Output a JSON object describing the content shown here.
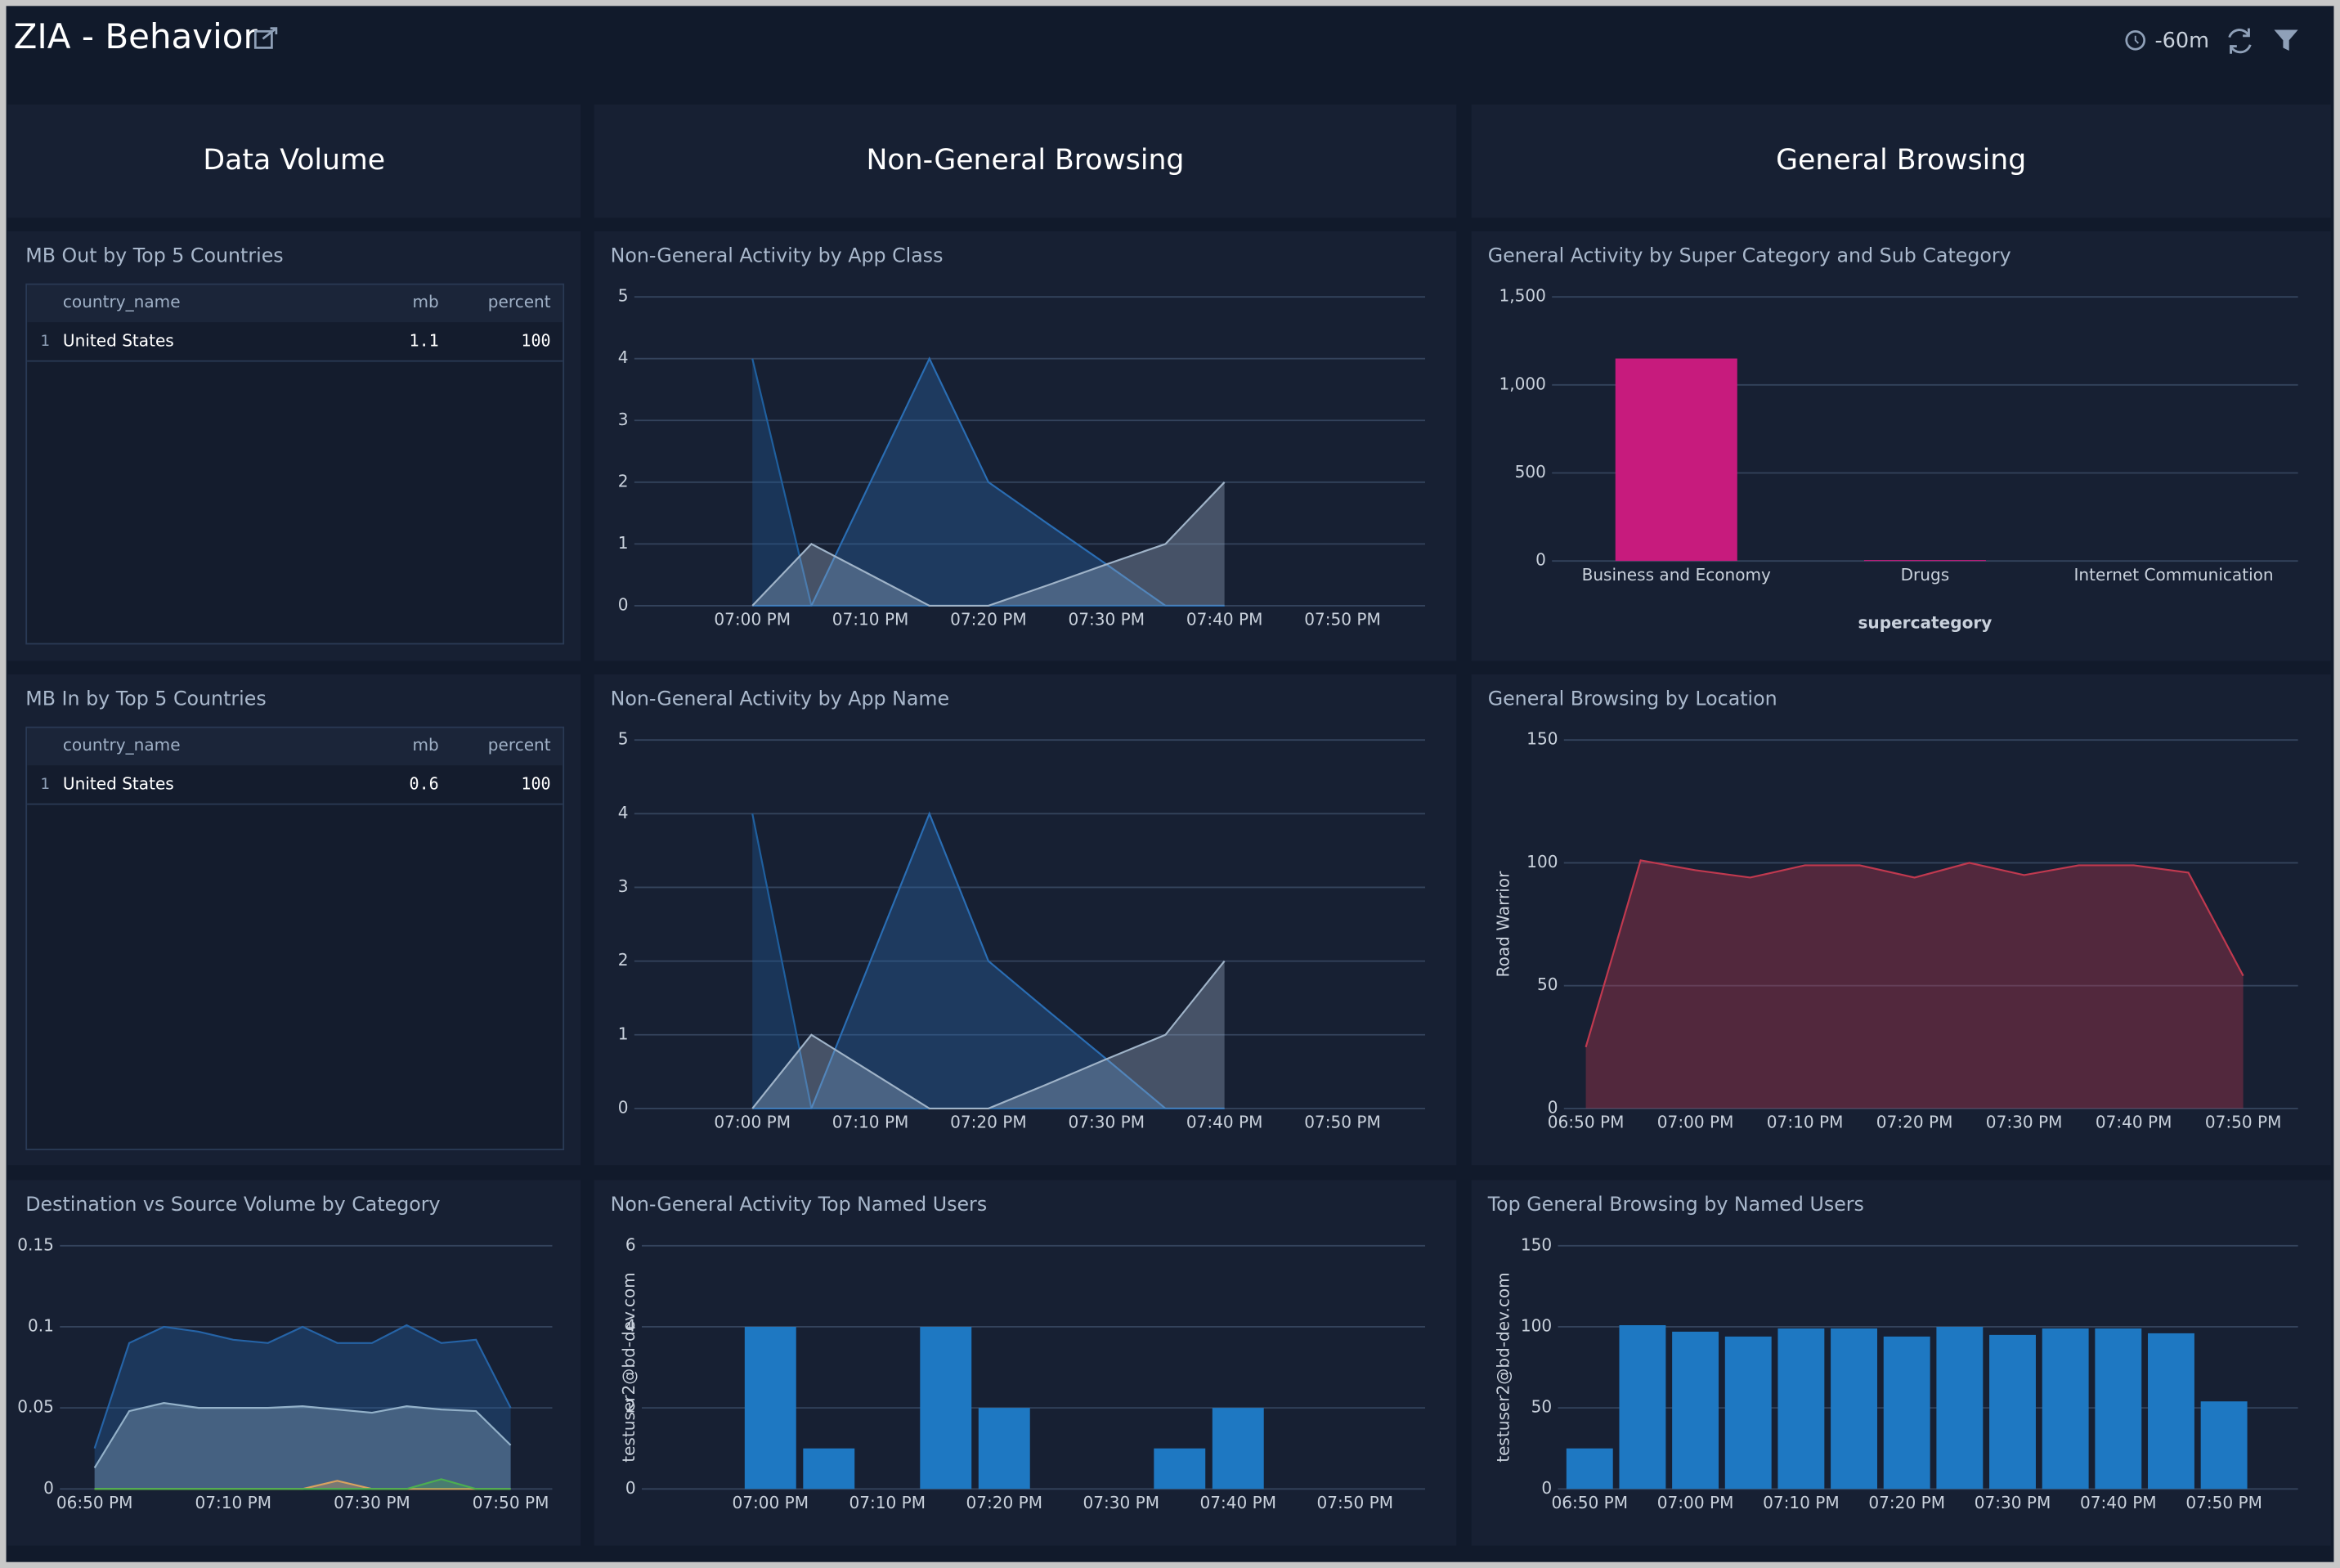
{
  "header": {
    "title": "ZIA - Behavior",
    "time_range": "-60m"
  },
  "sections": [
    "Data Volume",
    "Non-General Browsing",
    "General Browsing"
  ],
  "tables": [
    {
      "title": "MB Out by Top 5 Countries",
      "columns": [
        "country_name",
        "mb",
        "percent"
      ],
      "rows": [
        {
          "index": 1,
          "country_name": "United States",
          "mb": 1.1,
          "percent": 100
        }
      ]
    },
    {
      "title": "MB In by Top 5 Countries",
      "columns": [
        "country_name",
        "mb",
        "percent"
      ],
      "rows": [
        {
          "index": 1,
          "country_name": "United States",
          "mb": 0.6,
          "percent": 100
        }
      ]
    }
  ],
  "chart_data": [
    {
      "type": "area",
      "title": "Non-General Activity by App Class",
      "x": [
        "07:00 PM",
        "07:05 PM",
        "07:10 PM",
        "07:15 PM",
        "07:20 PM",
        "07:25 PM",
        "07:30 PM",
        "07:35 PM",
        "07:40 PM"
      ],
      "series": [
        {
          "color": "#1f5f9e",
          "values": [
            4,
            0,
            0,
            0,
            0,
            0,
            0,
            0,
            0
          ]
        },
        {
          "color": "#2a6db3",
          "values": [
            0,
            0,
            2,
            4,
            2,
            1.33,
            0.67,
            0,
            0
          ]
        },
        {
          "color": "#9fb3c8",
          "values": [
            0,
            1,
            0.5,
            0,
            0,
            0.33,
            0.67,
            1,
            2
          ]
        }
      ],
      "xlim": [
        "06:50 PM",
        "07:57 PM"
      ],
      "xticks": [
        "07:00 PM",
        "07:10 PM",
        "07:20 PM",
        "07:30 PM",
        "07:40 PM",
        "07:50 PM"
      ],
      "ylim": [
        0,
        5
      ],
      "yticks": [
        0,
        1,
        2,
        3,
        4,
        5
      ],
      "grid": true
    },
    {
      "type": "area",
      "title": "Non-General Activity by App Name",
      "x": [
        "07:00 PM",
        "07:05 PM",
        "07:10 PM",
        "07:15 PM",
        "07:20 PM",
        "07:25 PM",
        "07:30 PM",
        "07:35 PM",
        "07:40 PM"
      ],
      "series": [
        {
          "color": "#1f5f9e",
          "values": [
            4,
            0,
            0,
            0,
            0,
            0,
            0,
            0,
            0
          ]
        },
        {
          "color": "#2a6db3",
          "values": [
            0,
            0,
            2,
            4,
            2,
            1.33,
            0.67,
            0,
            0
          ]
        },
        {
          "color": "#9fb3c8",
          "values": [
            0,
            1,
            0.5,
            0,
            0,
            0.33,
            0.67,
            1,
            2
          ]
        }
      ],
      "xlim": [
        "06:50 PM",
        "07:57 PM"
      ],
      "xticks": [
        "07:00 PM",
        "07:10 PM",
        "07:20 PM",
        "07:30 PM",
        "07:40 PM",
        "07:50 PM"
      ],
      "ylim": [
        0,
        5
      ],
      "yticks": [
        0,
        1,
        2,
        3,
        4,
        5
      ],
      "grid": true
    },
    {
      "type": "bar",
      "title": "General Activity by Super Category and Sub Category",
      "categories": [
        "Business and Economy",
        "Drugs",
        "Internet Communication"
      ],
      "values": [
        1150,
        5,
        0
      ],
      "color": "#c71b7d",
      "xlabel": "supercategory",
      "ylim": [
        0,
        1500
      ],
      "yticks": [
        0,
        500,
        {
          "value": 1000,
          "label": "1,000"
        },
        {
          "value": 1500,
          "label": "1,500"
        }
      ],
      "grid": true
    },
    {
      "type": "area",
      "title": "General Browsing by Location",
      "ylabel": "Road Warrior",
      "x": [
        "06:50 PM",
        "06:55 PM",
        "07:00 PM",
        "07:05 PM",
        "07:10 PM",
        "07:15 PM",
        "07:20 PM",
        "07:25 PM",
        "07:30 PM",
        "07:35 PM",
        "07:40 PM",
        "07:45 PM",
        "07:50 PM"
      ],
      "series": [
        {
          "color": "#c0394f",
          "values": [
            25,
            101,
            97,
            94,
            99,
            99,
            94,
            100,
            95,
            99,
            99,
            96,
            54
          ]
        }
      ],
      "xlim": [
        "06:48 PM",
        "07:55 PM"
      ],
      "xticks": [
        "06:50 PM",
        "07:00 PM",
        "07:10 PM",
        "07:20 PM",
        "07:30 PM",
        "07:40 PM",
        "07:50 PM"
      ],
      "ylim": [
        0,
        150
      ],
      "yticks": [
        0,
        50,
        100,
        150
      ],
      "grid": true
    },
    {
      "type": "area",
      "title": "Destination vs Source Volume by Category",
      "x": [
        "06:50 PM",
        "06:55 PM",
        "07:00 PM",
        "07:05 PM",
        "07:10 PM",
        "07:15 PM",
        "07:20 PM",
        "07:25 PM",
        "07:30 PM",
        "07:35 PM",
        "07:40 PM",
        "07:45 PM",
        "07:50 PM"
      ],
      "series": [
        {
          "color": "#2563a6",
          "values": [
            0.025,
            0.09,
            0.1,
            0.097,
            0.092,
            0.09,
            0.1,
            0.09,
            0.09,
            0.101,
            0.09,
            0.092,
            0.05
          ]
        },
        {
          "color": "#93b1c9",
          "values": [
            0.013,
            0.048,
            0.053,
            0.05,
            0.05,
            0.05,
            0.051,
            0.049,
            0.047,
            0.051,
            0.049,
            0.048,
            0.027
          ]
        },
        {
          "color": "#d9a25f",
          "values": [
            0,
            0,
            0,
            0,
            0,
            0,
            0,
            0.005,
            0,
            0,
            0,
            0,
            0
          ]
        },
        {
          "color": "#4caf50",
          "values": [
            0,
            0,
            0,
            0,
            0,
            0,
            0,
            0,
            0,
            0,
            0.006,
            0,
            0
          ]
        }
      ],
      "xlim": [
        "06:45 PM",
        "07:56 PM"
      ],
      "xticks": [
        "06:50 PM",
        "07:10 PM",
        "07:30 PM",
        "07:50 PM"
      ],
      "ylim": [
        0,
        0.15
      ],
      "yticks": [
        0,
        0.05,
        0.1,
        0.15
      ],
      "grid": true
    },
    {
      "type": "bar",
      "title": "Non-General Activity Top Named Users",
      "ylabel": "testuser2@bd-dev.com",
      "x": [
        "07:00 PM",
        "07:05 PM",
        "07:15 PM",
        "07:20 PM",
        "07:35 PM",
        "07:40 PM"
      ],
      "values": [
        4,
        1,
        4,
        2,
        1,
        2
      ],
      "color": "#1e78c2",
      "xlim": [
        "06:49 PM",
        "07:56 PM"
      ],
      "xticks": [
        "07:00 PM",
        "07:10 PM",
        "07:20 PM",
        "07:30 PM",
        "07:40 PM",
        "07:50 PM"
      ],
      "ylim": [
        0,
        6
      ],
      "yticks": [
        0,
        2,
        4,
        6
      ],
      "grid": true
    },
    {
      "type": "bar",
      "title": "Top General Browsing by Named Users",
      "ylabel": "testuser2@bd-dev.com",
      "x": [
        "06:50 PM",
        "06:55 PM",
        "07:00 PM",
        "07:05 PM",
        "07:10 PM",
        "07:15 PM",
        "07:20 PM",
        "07:25 PM",
        "07:30 PM",
        "07:35 PM",
        "07:40 PM",
        "07:45 PM",
        "07:50 PM"
      ],
      "values": [
        25,
        101,
        97,
        94,
        99,
        99,
        94,
        100,
        95,
        99,
        99,
        96,
        54
      ],
      "color": "#1e78c2",
      "xlim": [
        "06:47 PM",
        "07:57 PM"
      ],
      "xticks": [
        "06:50 PM",
        "07:00 PM",
        "07:10 PM",
        "07:20 PM",
        "07:30 PM",
        "07:40 PM",
        "07:50 PM"
      ],
      "ylim": [
        0,
        150
      ],
      "yticks": [
        0,
        50,
        100,
        150
      ],
      "grid": true
    }
  ]
}
